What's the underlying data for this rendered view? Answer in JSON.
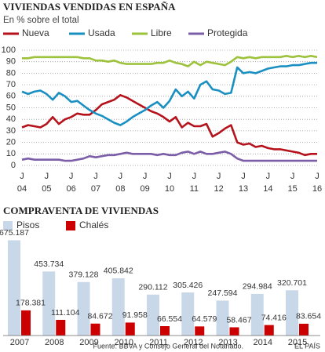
{
  "chart_data": [
    {
      "type": "line",
      "title": "VIVIENDAS VENDIDAS EN ESPAÑA",
      "subtitle": "En % sobre el total",
      "tick_month": "J",
      "categories": [
        "04",
        null,
        null,
        null,
        "05",
        null,
        null,
        null,
        "06",
        null,
        null,
        null,
        "07",
        null,
        null,
        null,
        "08",
        null,
        null,
        null,
        "09",
        null,
        null,
        null,
        "10",
        null,
        null,
        null,
        "11",
        null,
        null,
        null,
        "12",
        null,
        null,
        null,
        "13",
        null,
        null,
        null,
        "14",
        null,
        null,
        null,
        "15",
        null,
        null,
        null,
        "16"
      ],
      "series": [
        {
          "name": "Nueva",
          "color": "#b5121b",
          "values": [
            33,
            35,
            34,
            33,
            36,
            42,
            36,
            40,
            42,
            45,
            44,
            44,
            48,
            53,
            55,
            57,
            61,
            59,
            56,
            53,
            50,
            47,
            45,
            42,
            38,
            42,
            33,
            37,
            34,
            34,
            36,
            25,
            28,
            32,
            35,
            20,
            18,
            19,
            16,
            17,
            15,
            14,
            14,
            13,
            12,
            11,
            9,
            10,
            10
          ]
        },
        {
          "name": "Usada",
          "color": "#1a8fc1",
          "values": [
            64,
            62,
            64,
            65,
            62,
            57,
            63,
            60,
            55,
            56,
            52,
            48,
            45,
            43,
            40,
            37,
            35,
            38,
            42,
            45,
            48,
            52,
            55,
            50,
            56,
            66,
            60,
            64,
            58,
            70,
            73,
            66,
            65,
            62,
            63,
            85,
            80,
            81,
            80,
            82,
            84,
            85,
            86,
            86,
            87,
            87,
            88,
            89,
            89
          ]
        },
        {
          "name": "Libre",
          "color": "#9dc23c",
          "values": [
            93,
            93,
            94,
            94,
            94,
            94,
            94,
            94,
            94,
            94,
            93,
            93,
            91,
            91,
            90,
            91,
            89,
            88,
            88,
            88,
            88,
            88,
            89,
            89,
            91,
            89,
            88,
            86,
            90,
            87,
            90,
            89,
            88,
            87,
            90,
            94,
            93,
            94,
            93,
            94,
            94,
            94,
            94,
            95,
            94,
            95,
            94,
            95,
            94
          ]
        },
        {
          "name": "Protegida",
          "color": "#7b5ea7",
          "values": [
            5,
            6,
            5,
            5,
            5,
            5,
            5,
            4,
            4,
            5,
            6,
            8,
            7,
            8,
            9,
            9,
            10,
            11,
            10,
            10,
            10,
            10,
            9,
            10,
            9,
            9,
            11,
            12,
            10,
            12,
            10,
            10,
            11,
            12,
            10,
            6,
            4,
            4,
            4,
            4,
            4,
            4,
            4,
            4,
            4,
            4,
            4,
            4,
            4
          ]
        }
      ],
      "ylim": [
        0,
        100
      ],
      "yticks": [
        0,
        10,
        20,
        30,
        40,
        50,
        60,
        70,
        80,
        90,
        100
      ],
      "grid": true
    },
    {
      "type": "bar",
      "title": "COMPRAVENTA DE VIVIENDAS",
      "categories": [
        "2007",
        "2008",
        "2009",
        "2010",
        "2011",
        "2012",
        "2013",
        "2014",
        "2015"
      ],
      "series": [
        {
          "name": "Pisos",
          "color": "#c9d8e8",
          "values": [
            675187,
            453734,
            379128,
            405842,
            290112,
            305426,
            247594,
            294984,
            320701
          ],
          "value_labels": [
            "675.187",
            "453.734",
            "379.128",
            "405.842",
            "290.112",
            "305.426",
            "247.594",
            "294.984",
            "320.701"
          ]
        },
        {
          "name": "Chalés",
          "color": "#cc0000",
          "values": [
            178381,
            111104,
            84672,
            91958,
            66554,
            64579,
            58467,
            74416,
            83654
          ],
          "value_labels": [
            "178.381",
            "111.104",
            "84.672",
            "91.958",
            "66.554",
            "64.579",
            "58.467",
            "74.416",
            "83.654"
          ]
        }
      ],
      "ylim": [
        0,
        700000
      ]
    }
  ],
  "source": "Fuente: BBVA y Consejo General del Notariado.",
  "brand": "EL PAÍS"
}
